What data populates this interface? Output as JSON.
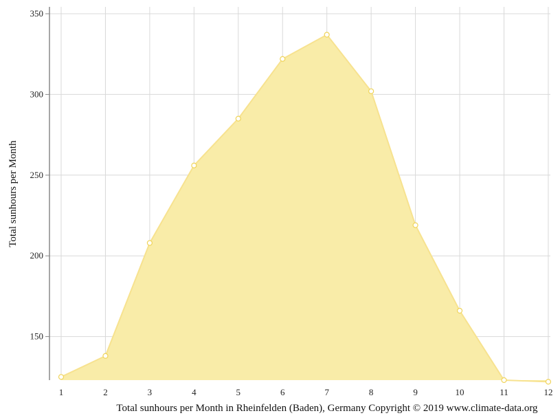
{
  "chart_data": {
    "type": "area",
    "x": [
      1,
      2,
      3,
      4,
      5,
      6,
      7,
      8,
      9,
      10,
      11,
      12
    ],
    "x_tick_labels": [
      "1",
      "2",
      "3",
      "4",
      "5",
      "6",
      "7",
      "8",
      "9",
      "10",
      "11",
      "12"
    ],
    "values": [
      125,
      138,
      208,
      256,
      285,
      322,
      337,
      302,
      219,
      166,
      123,
      122
    ],
    "ylabel": "Total sunhours per Month",
    "xlabel": "Total sunhours per Month in Rheinfelden (Baden), Germany Copyright © 2019 www.climate-data.org",
    "y_ticks": [
      150,
      200,
      250,
      300,
      350
    ],
    "y_tick_labels": [
      "150",
      "200",
      "250",
      "300",
      "350"
    ],
    "ylim": [
      123,
      355
    ],
    "grid": true,
    "colors": {
      "fill": "#f9eca8",
      "line": "#f7e28f",
      "marker_fill": "#ffffff",
      "marker_stroke": "#f0d45a",
      "grid": "#d9d9d9",
      "axis": "#888888"
    }
  }
}
